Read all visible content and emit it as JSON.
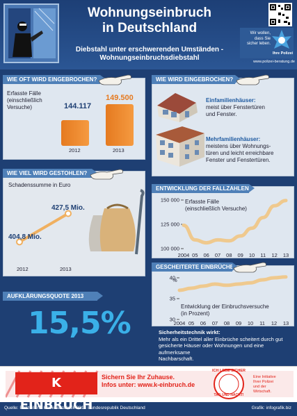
{
  "header": {
    "title_line1": "Wohnungseinbruch",
    "title_line2": "in Deutschland",
    "subtitle_line1": "Diebstahl unter erschwerenden Umständen -",
    "subtitle_line2": "Wohnungseinbruchsdiebstahl",
    "police_badge_text_line1": "Wir wollen,",
    "police_badge_text_line2": "dass Sie",
    "police_badge_text_line3": "sicher leben.",
    "police_badge_label": "Ihre Polizei",
    "police_url": "www.polizei-beratung.de"
  },
  "how_often": {
    "heading": "WIE OFT WIRD EINGEBROCHEN?",
    "label_line1": "Erfasste Fälle",
    "label_line2": "(einschließlich",
    "label_line3": "Versuche)",
    "chart_data": {
      "type": "bar",
      "categories": [
        "2012",
        "2013"
      ],
      "values": [
        144117,
        149500
      ],
      "value_labels": [
        "144.117",
        "149.500"
      ],
      "colors": [
        "#1e3f73",
        "#e57a20"
      ]
    }
  },
  "how": {
    "heading": "WIE WIRD EINGEBROCHEN?",
    "single_title": "Einfamilienhäuser:",
    "single_line1": "meist über Fenstertüren",
    "single_line2": "und Fenster.",
    "multi_title": "Mehrfamilienhäuser:",
    "multi_line1": "meistens über Wohnungs-",
    "multi_line2": "türen und leicht erreichbare",
    "multi_line3": "Fenster und Fenstertüren."
  },
  "how_much": {
    "heading": "WIE VIEL WIRD GESTOHLEN?",
    "label": "Schadenssumme in Euro",
    "chart_data": {
      "type": "line",
      "x": [
        "2012",
        "2013"
      ],
      "values": [
        404.8,
        427.5
      ],
      "value_labels": [
        "404,8 Mio.",
        "427,5 Mio."
      ],
      "color": "#f0b060"
    }
  },
  "development": {
    "heading": "ENTWICKLUNG DER FALLZAHLEN",
    "label_line1": "Erfasste Fälle",
    "label_line2": "(einschließlich Versuche)",
    "chart_data": {
      "type": "line",
      "x": [
        "2004",
        "05",
        "06",
        "07",
        "08",
        "09",
        "10",
        "11",
        "12",
        "13"
      ],
      "values": [
        124000,
        109000,
        106000,
        109000,
        108000,
        113000,
        121000,
        132000,
        144117,
        149500
      ],
      "y_ticks": [
        "150 000",
        "125 000",
        "100 000"
      ],
      "ylim": [
        100000,
        150000
      ],
      "color": "#efc98e"
    }
  },
  "failed": {
    "heading": "GESCHEITERTE EINBRÜCHE",
    "label_line1": "Entwicklung der Einbruchsversuche",
    "label_line2": "(in Prozent)",
    "unit": "%",
    "chart_data": {
      "type": "line",
      "x": [
        "2004",
        "05",
        "06",
        "07",
        "08",
        "09",
        "10",
        "11",
        "12",
        "13"
      ],
      "values": [
        37,
        37.5,
        38,
        38.5,
        38.2,
        38.5,
        38.8,
        39.5,
        40,
        40.2
      ],
      "y_ticks": [
        "40",
        "35",
        "30"
      ],
      "ylim": [
        30,
        40
      ],
      "color": "#efc98e"
    }
  },
  "quote": {
    "heading": "AUFKLÄRUNGSQUOTE 2013",
    "value": "15,5",
    "unit": "%"
  },
  "note": {
    "title": "Sicherheitstechnik wirkt:",
    "line1": "Mehr als ein Drittel aller Einbrüche scheitert durch gut",
    "line2": "gesicherte Häuser oder Wohnungen und eine aufmerksame",
    "line3": "Nachbarschaft."
  },
  "footer": {
    "brand": "K EINBRUCH",
    "slogan_line1": "Sichern Sie Ihr Zuhause.",
    "slogan_line2": "Infos unter: www.k-einbruch.de",
    "seal_top": "ICH LEBE SICHER",
    "seal_bottom": "TAG UND NACHT!",
    "initiative_line1": "Eine Initiative",
    "initiative_line2": "Ihrer Polizei",
    "initiative_line3": "und der",
    "initiative_line4": "Wirtschaft.",
    "source": "Quelle: Polizeiliche Kriminalstatistik 2013 Bundesrepublik Deutschland",
    "credit": "Grafik: infografik.biz"
  }
}
